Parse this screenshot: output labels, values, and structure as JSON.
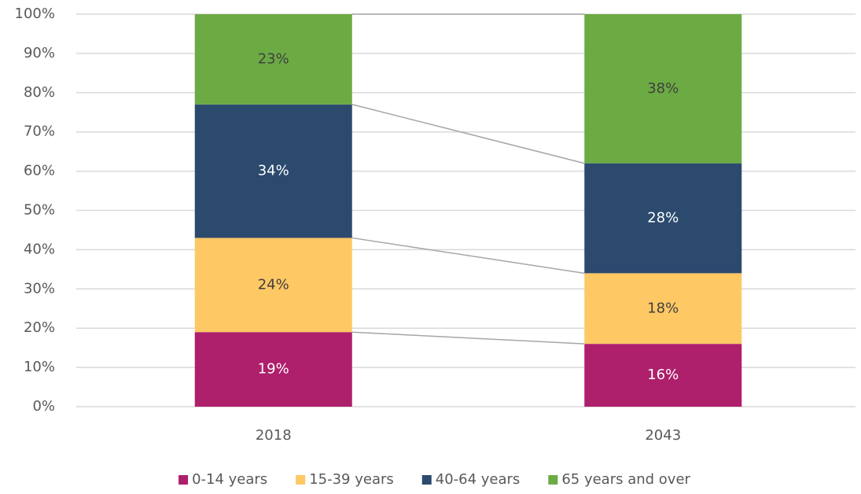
{
  "chart_data": {
    "type": "stacked_bar",
    "categories": [
      "2018",
      "2043"
    ],
    "series": [
      {
        "name": "0-14 years",
        "color": "#ae1f6c",
        "label_color": "#ffffff",
        "values": [
          19,
          16
        ],
        "value_labels": [
          "19%",
          "16%"
        ]
      },
      {
        "name": "15-39 years",
        "color": "#fec864",
        "label_color": "#404040",
        "values": [
          24,
          18
        ],
        "value_labels": [
          "24%",
          "18%"
        ]
      },
      {
        "name": "40-64 years",
        "color": "#2c4a6e",
        "label_color": "#ffffff",
        "values": [
          34,
          28
        ],
        "value_labels": [
          "34%",
          "28%"
        ]
      },
      {
        "name": "65 years and over",
        "color": "#6cab44",
        "label_color": "#404040",
        "values": [
          23,
          38
        ],
        "value_labels": [
          "23%",
          "38%"
        ]
      }
    ],
    "ylim": [
      0,
      100
    ],
    "yticks": [
      {
        "value": 0,
        "label": "0%"
      },
      {
        "value": 10,
        "label": "10%"
      },
      {
        "value": 20,
        "label": "20%"
      },
      {
        "value": 30,
        "label": "30%"
      },
      {
        "value": 40,
        "label": "40%"
      },
      {
        "value": 50,
        "label": "50%"
      },
      {
        "value": 60,
        "label": "60%"
      },
      {
        "value": 70,
        "label": "70%"
      },
      {
        "value": 80,
        "label": "80%"
      },
      {
        "value": 90,
        "label": "90%"
      },
      {
        "value": 100,
        "label": "100%"
      }
    ],
    "grid": true,
    "series_lines": true,
    "legend": "bottom"
  }
}
